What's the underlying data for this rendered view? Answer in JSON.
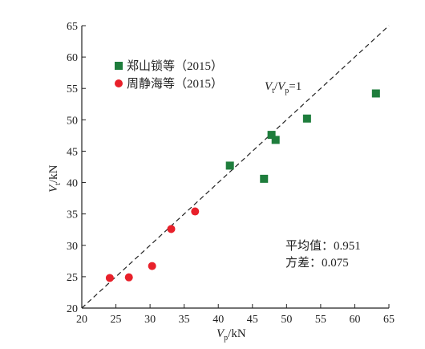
{
  "chart_data": {
    "type": "scatter",
    "xlim": [
      20,
      65
    ],
    "ylim": [
      20,
      65
    ],
    "x_ticks": [
      20,
      25,
      30,
      35,
      40,
      45,
      50,
      55,
      60,
      65
    ],
    "y_ticks": [
      20,
      25,
      30,
      35,
      40,
      45,
      50,
      55,
      60,
      65
    ],
    "xlabel": {
      "base": "V",
      "sub": "p",
      "tail": "/kN"
    },
    "ylabel": {
      "base": "V",
      "sub": "t",
      "tail": "/kN"
    },
    "grid": false,
    "legend_position": "top-left",
    "series": [
      {
        "name": "郑山锁等（2015）",
        "marker": "square",
        "color": "#1e7d3c",
        "points": [
          {
            "x": 41.7,
            "y": 42.7
          },
          {
            "x": 46.7,
            "y": 40.6
          },
          {
            "x": 47.8,
            "y": 47.6
          },
          {
            "x": 48.4,
            "y": 46.8
          },
          {
            "x": 53.0,
            "y": 50.2
          },
          {
            "x": 63.1,
            "y": 54.2
          }
        ]
      },
      {
        "name": "周静海等（2015）",
        "marker": "circle",
        "color": "#e8202a",
        "points": [
          {
            "x": 24.1,
            "y": 24.8
          },
          {
            "x": 26.9,
            "y": 24.9
          },
          {
            "x": 30.3,
            "y": 26.7
          },
          {
            "x": 33.1,
            "y": 32.6
          },
          {
            "x": 36.6,
            "y": 35.4
          }
        ]
      }
    ],
    "reference_line": {
      "style": "dashed",
      "from": [
        20,
        20
      ],
      "to": [
        65,
        65
      ],
      "label": {
        "base1": "V",
        "sub1": "t",
        "mid": "/",
        "base2": "V",
        "sub2": "p",
        "tail": "=1"
      }
    },
    "annotations": {
      "mean_label": "平均值：",
      "mean_value": "0.951",
      "variance_label": "方差：",
      "variance_value": "0.075"
    }
  }
}
